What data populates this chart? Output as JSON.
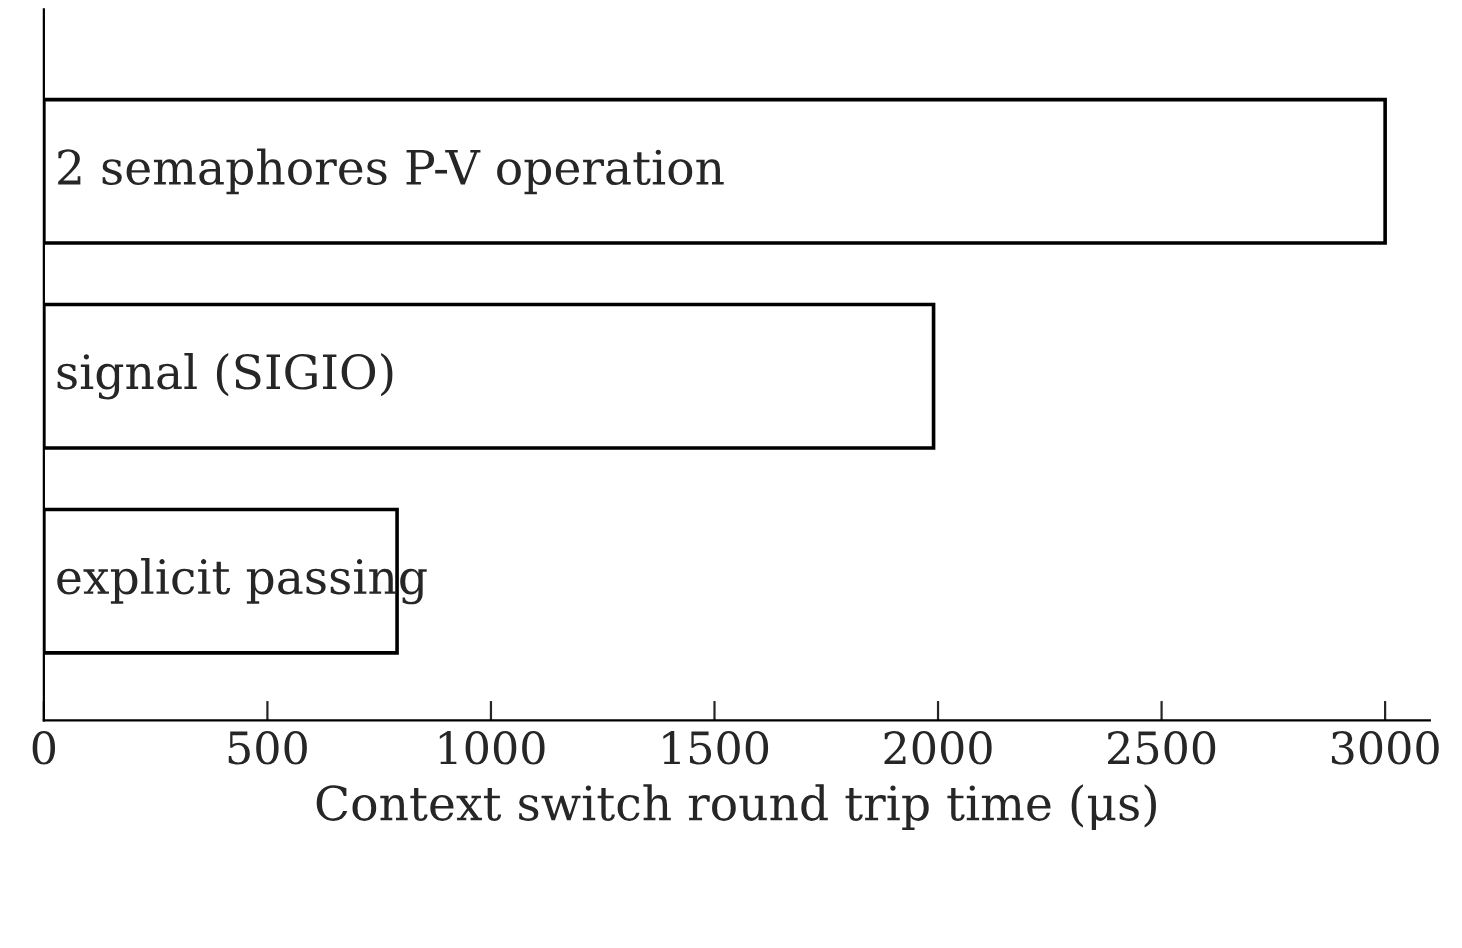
{
  "chart_data": {
    "type": "bar",
    "orientation": "horizontal",
    "xlabel": "Context switch round trip time (μs)",
    "categories": [
      "2 semaphores P-V operation",
      "signal (SIGIO)",
      "explicit passing"
    ],
    "values": [
      3000,
      1990,
      790
    ],
    "color": "#ffffff",
    "xlim": [
      0,
      3100
    ],
    "xticks": [
      0,
      500,
      1000,
      1500,
      2000,
      2500,
      3000
    ],
    "grid": false,
    "legend": false
  }
}
